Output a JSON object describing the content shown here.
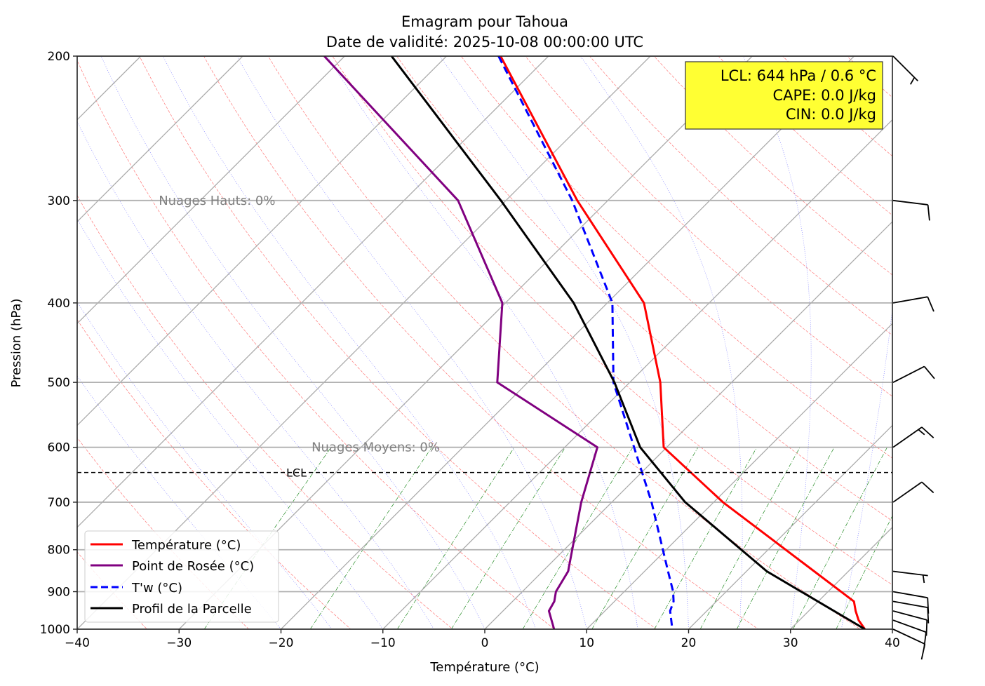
{
  "chart_data": {
    "type": "line",
    "subtype": "skew-T emagram",
    "title": "Emagram pour Tahoua",
    "subtitle": "Date de validité: 2025-10-08 00:00:00 UTC",
    "xlabel": "Température (°C)",
    "ylabel": "Pression (hPa)",
    "xlim": [
      -40,
      40
    ],
    "ylim": [
      1000,
      200
    ],
    "x_ticks": [
      -40,
      -30,
      -20,
      -10,
      0,
      10,
      20,
      30,
      40
    ],
    "y_ticks": [
      1000,
      900,
      800,
      700,
      600,
      500,
      400,
      300,
      200
    ],
    "grid": true,
    "legend_position": "lower-left",
    "series": [
      {
        "name": "Température (°C)",
        "color": "#ff0000",
        "style": "solid",
        "points": [
          [
            200,
            -54.7
          ],
          [
            300,
            -33.0
          ],
          [
            400,
            -16.4
          ],
          [
            500,
            -7.0
          ],
          [
            600,
            -0.3
          ],
          [
            700,
            10.9
          ],
          [
            925,
            33.5
          ],
          [
            950,
            34.6
          ],
          [
            975,
            35.8
          ],
          [
            1000,
            37.3
          ]
        ]
      },
      {
        "name": "Point de Rosée (°C)",
        "color": "#800080",
        "style": "solid",
        "points": [
          [
            200,
            -72.0
          ],
          [
            300,
            -44.7
          ],
          [
            400,
            -30.3
          ],
          [
            500,
            -23.0
          ],
          [
            600,
            -6.8
          ],
          [
            700,
            -3.0
          ],
          [
            850,
            2.5
          ],
          [
            900,
            3.3
          ],
          [
            925,
            4.1
          ],
          [
            950,
            4.5
          ],
          [
            1000,
            6.8
          ]
        ]
      },
      {
        "name": "T'w (°C)",
        "color": "#0000ff",
        "style": "dashed",
        "points": [
          [
            200,
            -54.9
          ],
          [
            300,
            -33.5
          ],
          [
            400,
            -19.5
          ],
          [
            500,
            -11.6
          ],
          [
            600,
            -3.2
          ],
          [
            700,
            3.9
          ],
          [
            850,
            12.3
          ],
          [
            900,
            14.8
          ],
          [
            925,
            15.8
          ],
          [
            950,
            16.4
          ],
          [
            1000,
            18.4
          ]
        ]
      },
      {
        "name": "Profil de la Parcelle",
        "color": "#000000",
        "style": "solid",
        "points": [
          [
            200,
            -65.4
          ],
          [
            300,
            -40.5
          ],
          [
            400,
            -23.3
          ],
          [
            500,
            -11.5
          ],
          [
            600,
            -2.6
          ],
          [
            700,
            7.2
          ],
          [
            850,
            22.0
          ],
          [
            1000,
            37.3
          ]
        ]
      }
    ],
    "lcl": {
      "label": "LCL",
      "pressure": 644
    },
    "annotations": [
      {
        "text": "Nuages Hauts: 0%",
        "pressure": 300,
        "temperature_axis": -32
      },
      {
        "text": "Nuages Moyens: 0%",
        "pressure": 600,
        "temperature_axis": -17
      }
    ],
    "info_box": {
      "lines": [
        "LCL: 644 hPa / 0.6 °C",
        "CAPE: 0.0 J/kg",
        "CIN: 0.0 J/kg"
      ],
      "color": "#ffff33"
    },
    "wind_barbs": [
      {
        "pressure": 200,
        "direction": 135,
        "speed_kt": 5
      },
      {
        "pressure": 300,
        "direction": 97,
        "speed_kt": 10
      },
      {
        "pressure": 400,
        "direction": 80,
        "speed_kt": 10
      },
      {
        "pressure": 500,
        "direction": 63,
        "speed_kt": 10
      },
      {
        "pressure": 600,
        "direction": 55,
        "speed_kt": 15
      },
      {
        "pressure": 700,
        "direction": 55,
        "speed_kt": 10
      },
      {
        "pressure": 850,
        "direction": 97,
        "speed_kt": 5
      },
      {
        "pressure": 900,
        "direction": 100,
        "speed_kt": 10
      },
      {
        "pressure": 925,
        "direction": 100,
        "speed_kt": 10
      },
      {
        "pressure": 950,
        "direction": 105,
        "speed_kt": 10
      },
      {
        "pressure": 975,
        "direction": 110,
        "speed_kt": 10
      },
      {
        "pressure": 1000,
        "direction": 115,
        "speed_kt": 10
      }
    ],
    "background": {
      "isotherms_step": 10,
      "dry_adiabats_theta_K": [
        230,
        240,
        250,
        260,
        270,
        280,
        290,
        300,
        310,
        320,
        330,
        340,
        350,
        360,
        370,
        380,
        390,
        400,
        410,
        420,
        430,
        440
      ],
      "moist_adiabats_start_C": [
        -20,
        -15,
        -10,
        -5,
        0,
        5,
        10,
        15,
        20,
        25,
        30,
        35,
        40
      ],
      "mixing_ratios_gkg": [
        0.4,
        1,
        2,
        3,
        5,
        8,
        12,
        16,
        20,
        28,
        36
      ]
    }
  }
}
